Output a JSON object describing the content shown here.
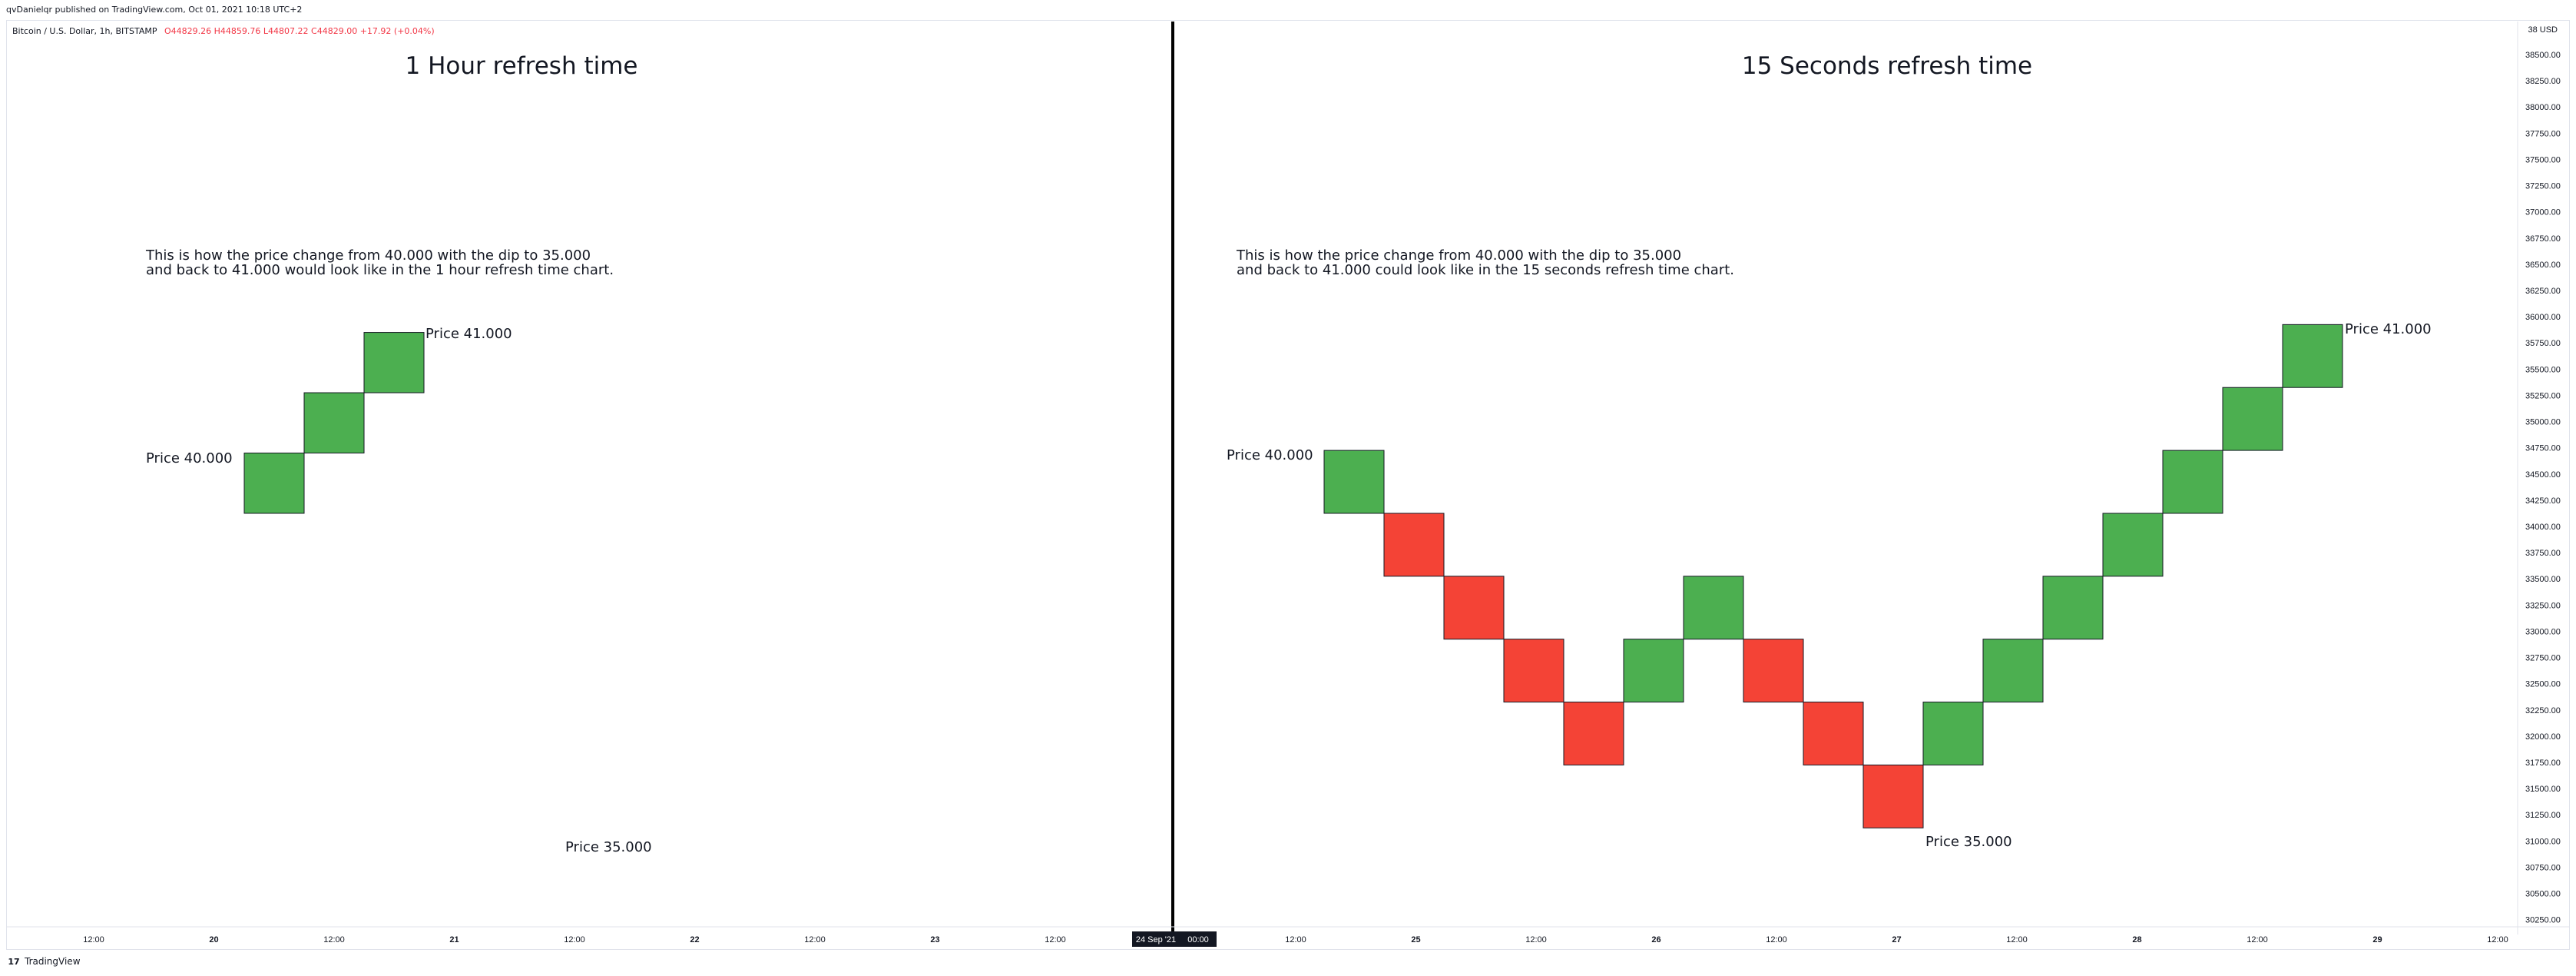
{
  "header": {
    "publisher_line": "qvDanielqr published on TradingView.com, Oct 01, 2021 10:18 UTC+2"
  },
  "ohlc_line": {
    "symbol": "Bitcoin / U.S. Dollar, 1h, BITSTAMP",
    "open": "O44829.26",
    "high": "H44859.76",
    "low": "L44807.22",
    "close": "C44829.00",
    "change": "+17.92 (+0.04%)"
  },
  "footer": {
    "brand": "TradingView",
    "logo_glyph": "17"
  },
  "chart_data": {
    "type": "renko",
    "price_axis": {
      "currency": "USD",
      "range": [
        30250,
        38750
      ],
      "tick_labels": [
        "38500.00",
        "38250.00",
        "38000.00",
        "37750.00",
        "37500.00",
        "37250.00",
        "37000.00",
        "36750.00",
        "36500.00",
        "36250.00",
        "36000.00",
        "35750.00",
        "35500.00",
        "35250.00",
        "35000.00",
        "34750.00",
        "34500.00",
        "34250.00",
        "34000.00",
        "33750.00",
        "33500.00",
        "33250.00",
        "33000.00",
        "32750.00",
        "32500.00",
        "32250.00",
        "32000.00",
        "31750.00",
        "31500.00",
        "31250.00",
        "31000.00",
        "30750.00",
        "30500.00",
        "30250.00"
      ]
    },
    "time_axis": {
      "tick_labels": [
        "12:00",
        "20",
        "12:00",
        "21",
        "12:00",
        "22",
        "12:00",
        "23",
        "12:00",
        "",
        "12:00",
        "25",
        "12:00",
        "26",
        "12:00",
        "27",
        "12:00",
        "28",
        "12:00",
        "29",
        "12:00"
      ],
      "crosshair_date": "24 Sep '21",
      "crosshair_time": "00:00"
    },
    "panels": [
      {
        "title": "1 Hour refresh time",
        "description_line1": "This is how the price change from 40.000 with the dip to 35.000",
        "description_line2": "and back to 41.000 would look like in the 1 hour refresh time chart.",
        "bricks": [
          {
            "open": 34125,
            "close": 34700,
            "direction": "up"
          },
          {
            "open": 34700,
            "close": 35275,
            "direction": "up"
          },
          {
            "open": 35275,
            "close": 35850,
            "direction": "up"
          }
        ],
        "annotations": [
          "Price 40.000",
          "Price 41.000",
          "Price 35.000"
        ]
      },
      {
        "title": "15 Seconds refresh time",
        "description_line1": "This is how the price change from 40.000 with the dip to 35.000",
        "description_line2": "and back to 41.000 could look like in the 15 seconds refresh time chart.",
        "bricks": [
          {
            "open": 34125,
            "close": 34725,
            "direction": "up"
          },
          {
            "open": 34125,
            "close": 33525,
            "direction": "down"
          },
          {
            "open": 33525,
            "close": 32925,
            "direction": "down"
          },
          {
            "open": 32925,
            "close": 32325,
            "direction": "down"
          },
          {
            "open": 32325,
            "close": 31725,
            "direction": "down"
          },
          {
            "open": 32325,
            "close": 32925,
            "direction": "up"
          },
          {
            "open": 32925,
            "close": 33525,
            "direction": "up"
          },
          {
            "open": 32925,
            "close": 32325,
            "direction": "down"
          },
          {
            "open": 32325,
            "close": 31725,
            "direction": "down"
          },
          {
            "open": 31725,
            "close": 31125,
            "direction": "down"
          },
          {
            "open": 31725,
            "close": 32325,
            "direction": "up"
          },
          {
            "open": 32325,
            "close": 32925,
            "direction": "up"
          },
          {
            "open": 32925,
            "close": 33525,
            "direction": "up"
          },
          {
            "open": 33525,
            "close": 34125,
            "direction": "up"
          },
          {
            "open": 34125,
            "close": 34725,
            "direction": "up"
          },
          {
            "open": 34725,
            "close": 35325,
            "direction": "up"
          },
          {
            "open": 35325,
            "close": 35925,
            "direction": "up"
          }
        ],
        "annotations": [
          "Price 40.000",
          "Price 41.000",
          "Price 35.000"
        ]
      }
    ],
    "colors": {
      "up": "#4caf50",
      "down": "#f44336",
      "divider": "#000000",
      "border": "#131722"
    }
  }
}
